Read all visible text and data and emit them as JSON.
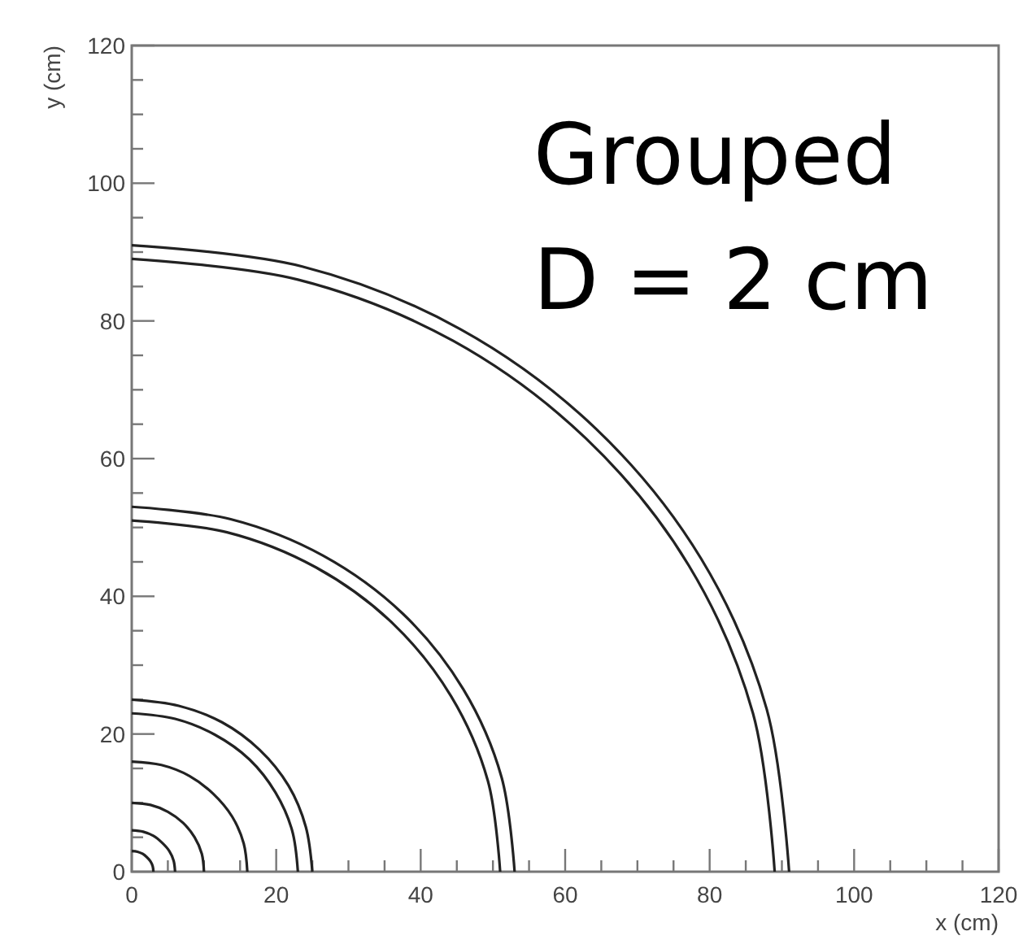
{
  "chart_data": {
    "type": "line",
    "xlabel": "x (cm)",
    "ylabel": "y (cm)",
    "annotations": [
      "Grouped",
      "D = 2 cm"
    ],
    "xlim": [
      0,
      120
    ],
    "ylim": [
      0,
      120
    ],
    "xticks": [
      0,
      {
        "value": 5,
        "label": null
      },
      {
        "value": 10,
        "label": null
      },
      {
        "value": 15,
        "label": null
      },
      20,
      {
        "value": 25,
        "label": null
      },
      {
        "value": 30,
        "label": null
      },
      {
        "value": 35,
        "label": null
      },
      40,
      {
        "value": 45,
        "label": null
      },
      {
        "value": 50,
        "label": null
      },
      {
        "value": 55,
        "label": null
      },
      60,
      {
        "value": 65,
        "label": null
      },
      {
        "value": 70,
        "label": null
      },
      {
        "value": 75,
        "label": null
      },
      80,
      {
        "value": 85,
        "label": null
      },
      {
        "value": 90,
        "label": null
      },
      {
        "value": 95,
        "label": null
      },
      100,
      {
        "value": 105,
        "label": null
      },
      {
        "value": 110,
        "label": null
      },
      {
        "value": 115,
        "label": null
      },
      120
    ],
    "yticks": [
      0,
      {
        "value": 5,
        "label": null
      },
      {
        "value": 10,
        "label": null
      },
      {
        "value": 15,
        "label": null
      },
      20,
      {
        "value": 25,
        "label": null
      },
      {
        "value": 30,
        "label": null
      },
      {
        "value": 35,
        "label": null
      },
      40,
      {
        "value": 45,
        "label": null
      },
      {
        "value": 50,
        "label": null
      },
      {
        "value": 55,
        "label": null
      },
      60,
      {
        "value": 65,
        "label": null
      },
      {
        "value": 70,
        "label": null
      },
      {
        "value": 75,
        "label": null
      },
      80,
      {
        "value": 85,
        "label": null
      },
      {
        "value": 90,
        "label": null
      },
      {
        "value": 95,
        "label": null
      },
      100,
      {
        "value": 105,
        "label": null
      },
      {
        "value": 110,
        "label": null
      },
      {
        "value": 115,
        "label": null
      },
      120
    ],
    "grid": false,
    "marker": "none",
    "line_style": "solid",
    "series": [
      {
        "color": "#222222",
        "x": [
          91,
          87.9,
          78.8,
          64.3,
          45.5,
          23.6,
          0
        ],
        "values": [
          0,
          23.6,
          45.5,
          64.3,
          78.8,
          87.9,
          91
        ]
      },
      {
        "color": "#222222",
        "x": [
          89,
          86.0,
          77.1,
          62.9,
          44.5,
          23.0,
          0
        ],
        "values": [
          0,
          23.0,
          44.5,
          62.9,
          77.1,
          86.0,
          89
        ]
      },
      {
        "color": "#222222",
        "x": [
          53,
          51.2,
          45.9,
          37.5,
          26.5,
          13.7,
          0
        ],
        "values": [
          0,
          13.7,
          26.5,
          37.5,
          45.9,
          51.2,
          53
        ]
      },
      {
        "color": "#222222",
        "x": [
          51,
          49.3,
          44.2,
          36.1,
          25.5,
          13.2,
          0
        ],
        "values": [
          0,
          13.2,
          25.5,
          36.1,
          44.2,
          49.3,
          51
        ]
      },
      {
        "color": "#222222",
        "x": [
          25,
          24.1,
          21.7,
          17.7,
          12.5,
          6.5,
          0
        ],
        "values": [
          0,
          6.5,
          12.5,
          17.7,
          21.7,
          24.1,
          25
        ]
      },
      {
        "color": "#222222",
        "x": [
          23,
          22.2,
          19.9,
          16.3,
          11.5,
          6.0,
          0
        ],
        "values": [
          0,
          6.0,
          11.5,
          16.3,
          19.9,
          22.2,
          23
        ]
      },
      {
        "color": "#222222",
        "x": [
          16,
          15.5,
          13.9,
          11.3,
          8,
          4.1,
          0
        ],
        "values": [
          0,
          4.1,
          8,
          11.3,
          13.9,
          15.5,
          16
        ]
      },
      {
        "color": "#222222",
        "x": [
          10,
          9.7,
          8.7,
          7.1,
          5,
          2.6,
          0
        ],
        "values": [
          0,
          2.6,
          5,
          7.1,
          8.7,
          9.7,
          10
        ]
      },
      {
        "color": "#222222",
        "x": [
          6,
          5.8,
          5.2,
          4.2,
          3,
          1.6,
          0
        ],
        "values": [
          0,
          1.6,
          3,
          4.2,
          5.2,
          5.8,
          6
        ]
      },
      {
        "color": "#222222",
        "x": [
          3,
          2.9,
          2.6,
          2.1,
          1.5,
          0.8,
          0
        ],
        "values": [
          0,
          0.8,
          1.5,
          2.1,
          2.6,
          2.9,
          3
        ]
      }
    ]
  }
}
